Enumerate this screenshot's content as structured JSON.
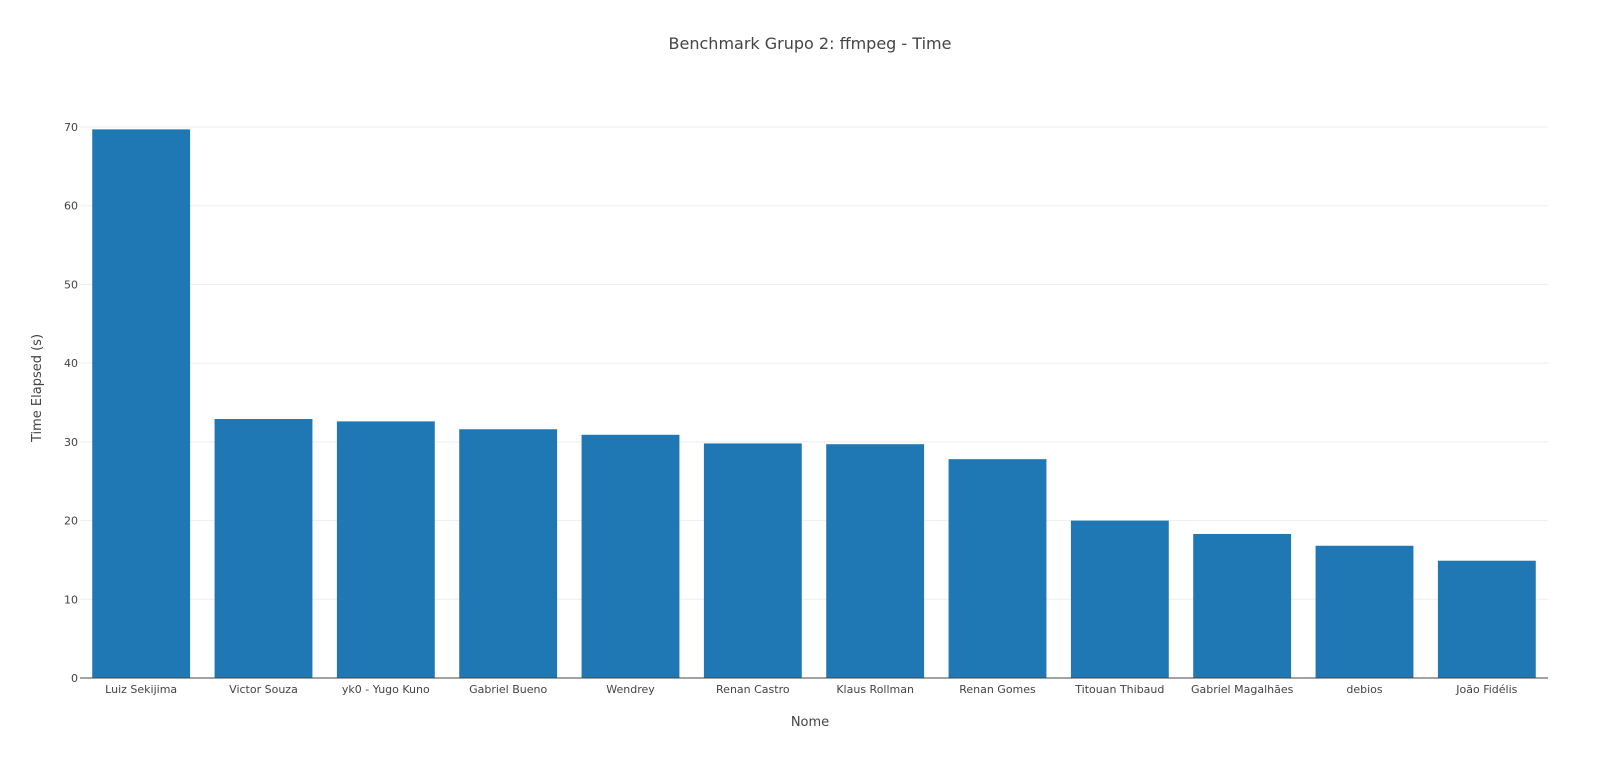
{
  "chart_data": {
    "type": "bar",
    "title": "Benchmark Grupo 2: ffmpeg - Time",
    "xlabel": "Nome",
    "ylabel": "Time Elapsed (s)",
    "categories": [
      "Luiz Sekijima",
      "Victor Souza",
      "yk0 - Yugo Kuno",
      "Gabriel Bueno",
      "Wendrey",
      "Renan Castro",
      "Klaus Rollman",
      "Renan Gomes",
      "Titouan Thibaud",
      "Gabriel Magalhães",
      "debios",
      "João Fidélis"
    ],
    "values": [
      69.7,
      32.9,
      32.6,
      31.6,
      30.9,
      29.8,
      29.7,
      27.8,
      20.0,
      18.3,
      16.8,
      14.9
    ],
    "ylim": [
      0,
      70
    ],
    "yticks": [
      0,
      10,
      20,
      30,
      40,
      50,
      60,
      70
    ],
    "grid": true,
    "legend": "none",
    "bar_color": "#1f77b4"
  }
}
